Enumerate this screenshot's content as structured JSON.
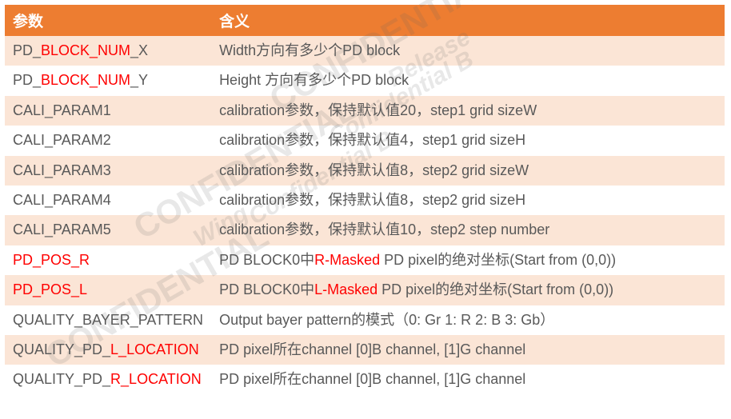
{
  "table": {
    "header_bg": "#ed7d31",
    "header_color": "#ffffff",
    "row_odd_bg": "#fbe5d6",
    "row_even_bg": "#ffffff",
    "text_color": "#595959",
    "highlight_color": "#ff0000",
    "font_size_header": 19,
    "font_size_body": 18,
    "col1_width": 258,
    "columns": [
      "参数",
      "含义"
    ],
    "rows": [
      {
        "param_segments": [
          {
            "text": "PD_",
            "red": false
          },
          {
            "text": "BLOCK_NUM",
            "red": true
          },
          {
            "text": "_X",
            "red": false
          }
        ],
        "desc_segments": [
          {
            "text": "Width方向有多少个PD block",
            "red": false
          }
        ]
      },
      {
        "param_segments": [
          {
            "text": "PD_",
            "red": false
          },
          {
            "text": "BLOCK_NUM",
            "red": true
          },
          {
            "text": "_Y",
            "red": false
          }
        ],
        "desc_segments": [
          {
            "text": "Height 方向有多少个PD block",
            "red": false
          }
        ]
      },
      {
        "param_segments": [
          {
            "text": "CALI_PARAM1",
            "red": false
          }
        ],
        "desc_segments": [
          {
            "text": "calibration参数，保持默认值20，step1 grid sizeW",
            "red": false
          }
        ]
      },
      {
        "param_segments": [
          {
            "text": "CALI_PARAM2",
            "red": false
          }
        ],
        "desc_segments": [
          {
            "text": "calibration参数，保持默认值4，step1 grid sizeH",
            "red": false
          }
        ]
      },
      {
        "param_segments": [
          {
            "text": "CALI_PARAM3",
            "red": false
          }
        ],
        "desc_segments": [
          {
            "text": "calibration参数，保持默认值8，step2 grid sizeW",
            "red": false
          }
        ]
      },
      {
        "param_segments": [
          {
            "text": "CALI_PARAM4",
            "red": false
          }
        ],
        "desc_segments": [
          {
            "text": "calibration参数，保持默认值8，step2 grid sizeH",
            "red": false
          }
        ]
      },
      {
        "param_segments": [
          {
            "text": "CALI_PARAM5",
            "red": false
          }
        ],
        "desc_segments": [
          {
            "text": "calibration参数，保持默认值10，step2 step number",
            "red": false
          }
        ]
      },
      {
        "param_segments": [
          {
            "text": "PD_POS_R",
            "red": true
          }
        ],
        "desc_segments": [
          {
            "text": "PD BLOCK0中",
            "red": false
          },
          {
            "text": "R-Masked",
            "red": true
          },
          {
            "text": " PD pixel的绝对坐标(Start from (0,0))",
            "red": false
          }
        ]
      },
      {
        "param_segments": [
          {
            "text": "PD_POS_L",
            "red": true
          }
        ],
        "desc_segments": [
          {
            "text": "PD BLOCK0中",
            "red": false
          },
          {
            "text": "L-Masked",
            "red": true
          },
          {
            "text": " PD pixel的绝对坐标(Start from (0,0))",
            "red": false
          }
        ]
      },
      {
        "param_segments": [
          {
            "text": "QUALITY_BAYER_PATTERN",
            "red": false
          }
        ],
        "desc_segments": [
          {
            "text": "Output bayer pattern的模式（0: Gr  1: R  2: B  3: Gb）",
            "red": false
          }
        ]
      },
      {
        "param_segments": [
          {
            "text": "QUALITY_PD_",
            "red": false
          },
          {
            "text": "L_LOCATION",
            "red": true
          }
        ],
        "desc_segments": [
          {
            "text": "PD pixel所在channel   [0]B channel,  [1]G channel",
            "red": false
          }
        ]
      },
      {
        "param_segments": [
          {
            "text": "QUALITY_PD_",
            "red": false
          },
          {
            "text": "R_LOCATION",
            "red": true
          }
        ],
        "desc_segments": [
          {
            "text": "PD pixel所在channel   [0]B channel,  [1]G channel",
            "red": false
          }
        ]
      }
    ]
  },
  "watermarks": {
    "text1": "CONFIDENTIAL",
    "text2": "Confidential B",
    "text3": "Release",
    "text4": "Wing"
  }
}
